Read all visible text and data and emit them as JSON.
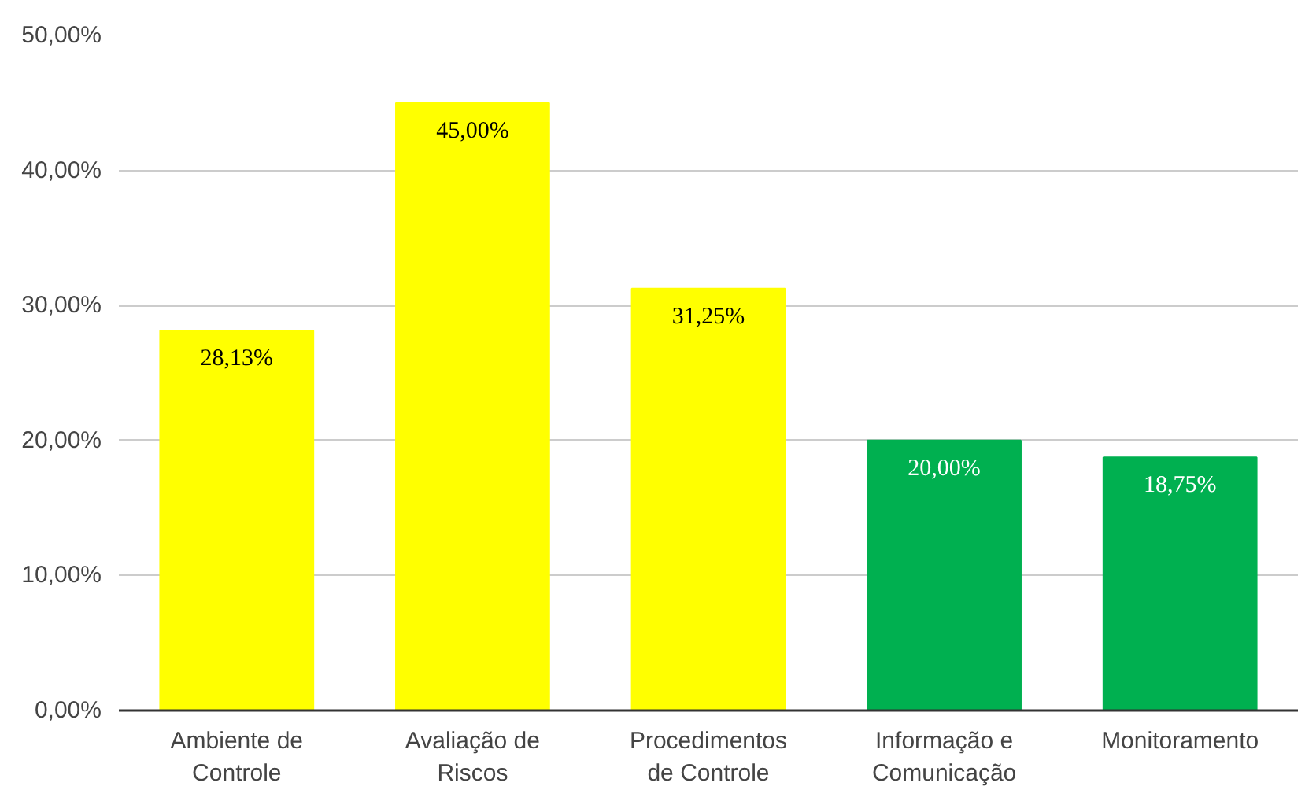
{
  "chart_data": {
    "type": "bar",
    "categories": [
      "Ambiente de Controle",
      "Avaliação de Riscos",
      "Procedimentos de Controle",
      "Informação e Comunicação",
      "Monitoramento"
    ],
    "values": [
      28.13,
      45,
      31.25,
      20,
      18.75
    ],
    "colors": [
      "#ffff00",
      "#ffff00",
      "#ffff00",
      "#00b050",
      "#00b050"
    ],
    "value_labels": [
      "28,13%",
      "45,00%",
      "31,25%",
      "20,00%",
      "18,75%"
    ],
    "ylim": [
      0,
      50
    ],
    "yticks": [
      {
        "value": 0,
        "label": "0,00%"
      },
      {
        "value": 10,
        "label": "10,00%"
      },
      {
        "value": 20,
        "label": "20,00%"
      },
      {
        "value": 30,
        "label": "30,00%"
      },
      {
        "value": 40,
        "label": "40,00%"
      },
      {
        "value": 50,
        "label": "50,00%"
      }
    ],
    "grid": "y"
  }
}
